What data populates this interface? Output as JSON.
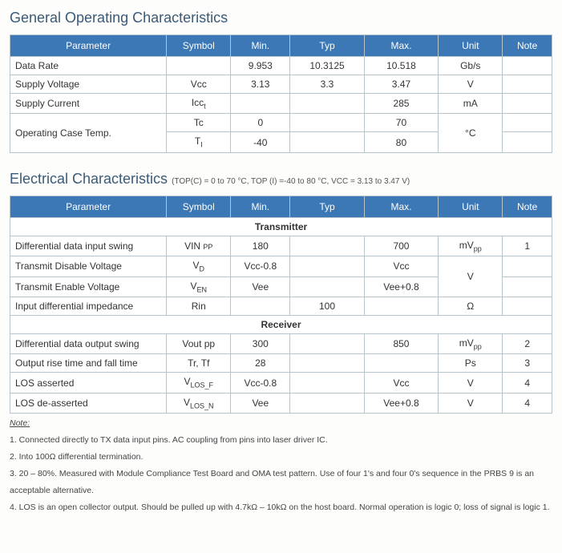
{
  "section1": {
    "title": "General Operating Characteristics",
    "headers": [
      "Parameter",
      "Symbol",
      "Min.",
      "Typ",
      "Max.",
      "Unit",
      "Note"
    ],
    "rows": [
      {
        "param": "Data Rate",
        "symbol": "",
        "min": "9.953",
        "typ": "10.3125",
        "max": "10.518",
        "unit": "Gb/s",
        "note": ""
      },
      {
        "param": "Supply Voltage",
        "symbol": "Vcc",
        "min": "3.13",
        "typ": "3.3",
        "max": "3.47",
        "unit": "V",
        "note": ""
      },
      {
        "param": "Supply Current",
        "symbol": "Icc",
        "symbol_sub": "t",
        "min": "",
        "typ": "",
        "max": "285",
        "unit": "mA",
        "note": ""
      }
    ],
    "op_temp_label": "Operating Case Temp.",
    "op_temp_rows": [
      {
        "symbol": "Tc",
        "min": "0",
        "typ": "",
        "max": "70",
        "note": ""
      },
      {
        "symbol": "T",
        "symbol_sub": "I",
        "min": "-40",
        "typ": "",
        "max": "80",
        "note": ""
      }
    ],
    "op_temp_unit": "°C"
  },
  "section2": {
    "title": "Electrical Characteristics",
    "conditions": "(TOP(C) = 0 to 70 °C, TOP (I) =-40 to 80 °C, VCC = 3.13 to 3.47 V)",
    "headers": [
      "Parameter",
      "Symbol",
      "Min.",
      "Typ",
      "Max.",
      "Unit",
      "Note"
    ],
    "tx_label": "Transmitter",
    "rx_label": "Receiver",
    "tx_rows": [
      {
        "param": "Differential data input swing",
        "symbol": "VIN",
        "symbol_sub": "PP",
        "min": "180",
        "typ": "",
        "max": "700",
        "unit": "mV",
        "unit_sub": "pp",
        "note": "1"
      },
      {
        "param": "Transmit Disable Voltage",
        "symbol": "V",
        "symbol_sub": "D",
        "min": "Vcc-0.8",
        "typ": "",
        "max": "Vcc",
        "unit_span": true,
        "note": ""
      },
      {
        "param": "Transmit Enable Voltage",
        "symbol": "V",
        "symbol_sub": "EN",
        "min": "Vee",
        "typ": "",
        "max": "Vee+0.8",
        "note": ""
      },
      {
        "param": "Input differential impedance",
        "symbol": "Rin",
        "min": "",
        "typ": "100",
        "max": "",
        "unit": "Ω",
        "note": ""
      }
    ],
    "tx_unit_span": "V",
    "rx_rows": [
      {
        "param": "Differential data output swing",
        "symbol": "Vout pp",
        "min": "300",
        "typ": "",
        "max": "850",
        "unit": "mV",
        "unit_sub": "pp",
        "note": "2"
      },
      {
        "param": "Output rise time and fall time",
        "symbol": "Tr, Tf",
        "min": "28",
        "typ": "",
        "max": "",
        "unit": "Ps",
        "note": "3"
      },
      {
        "param": "LOS asserted",
        "symbol": "V",
        "symbol_sub": "LOS_F",
        "min": "Vcc-0.8",
        "typ": "",
        "max": "Vcc",
        "unit": "V",
        "note": "4"
      },
      {
        "param": "LOS de-asserted",
        "symbol": "V",
        "symbol_sub": "LOS_N",
        "min": "Vee",
        "typ": "",
        "max": "Vee+0.8",
        "unit": "V",
        "note": "4"
      }
    ]
  },
  "notes": {
    "heading": "Note:",
    "items": [
      "1. Connected directly to TX data input pins. AC coupling from pins into laser driver IC.",
      "2. Into 100Ω differential termination.",
      "3. 20 – 80%. Measured with Module Compliance Test Board and OMA test pattern. Use of four 1's and four 0's sequence in the PRBS 9 is an acceptable alternative.",
      "4. LOS is an open collector output. Should be pulled up with 4.7kΩ – 10kΩ on the host board. Normal operation is logic 0; loss of signal is logic 1."
    ]
  }
}
